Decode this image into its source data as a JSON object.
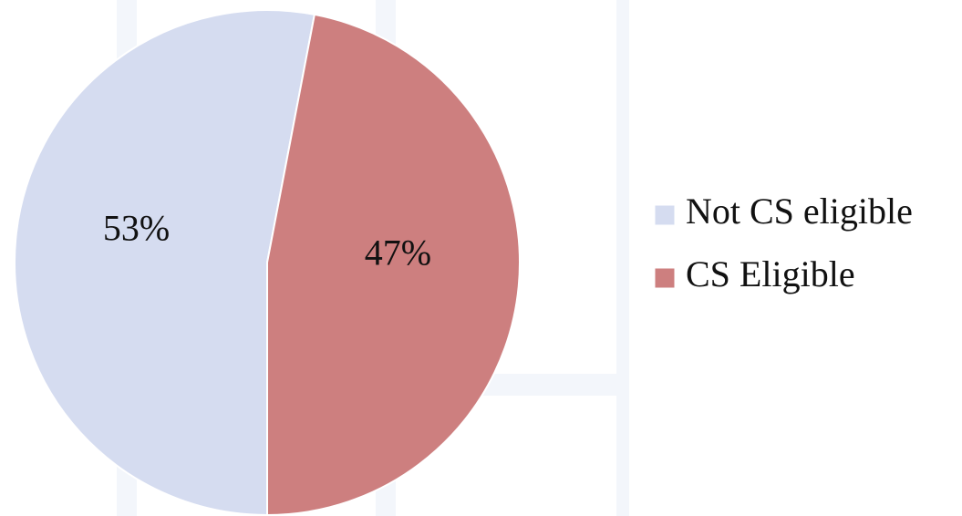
{
  "chart_data": {
    "type": "pie",
    "categories": [
      "Not CS eligible",
      "CS Eligible"
    ],
    "values": [
      53,
      47
    ],
    "value_labels": [
      "53%",
      "47%"
    ],
    "colors": [
      "#d5dcf0",
      "#cd7f7f"
    ],
    "legend": "right"
  }
}
